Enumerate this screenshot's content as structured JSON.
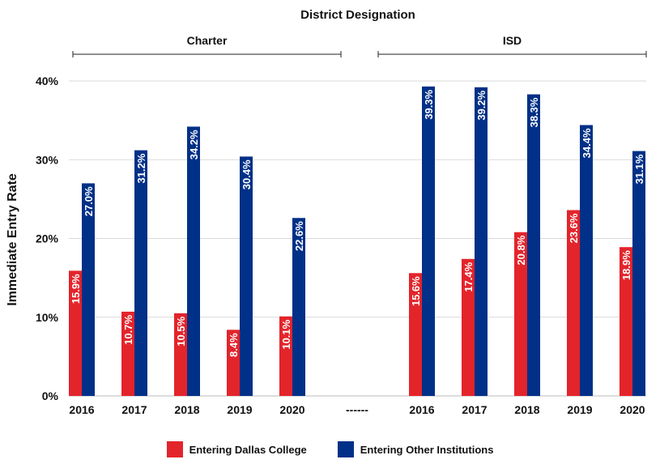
{
  "chart_data": {
    "type": "bar",
    "title": "District Designation",
    "ylabel": "Immediate Entry Rate",
    "ylim": [
      0,
      40
    ],
    "yticks": [
      "0%",
      "10%",
      "20%",
      "30%",
      "40%"
    ],
    "grid": true,
    "separator_label": "------",
    "groups": [
      {
        "name": "Charter",
        "categories": [
          "2016",
          "2017",
          "2018",
          "2019",
          "2020"
        ],
        "series": [
          {
            "name": "Entering Dallas College",
            "values": [
              15.9,
              10.7,
              10.5,
              8.4,
              10.1
            ],
            "labels": [
              "15.9%",
              "10.7%",
              "10.5%",
              "8.4%",
              "10.1%"
            ]
          },
          {
            "name": "Entering Other Institutions",
            "values": [
              27.0,
              31.2,
              34.2,
              30.4,
              22.6
            ],
            "labels": [
              "27.0%",
              "31.2%",
              "34.2%",
              "30.4%",
              "22.6%"
            ]
          }
        ]
      },
      {
        "name": "ISD",
        "categories": [
          "2016",
          "2017",
          "2018",
          "2019",
          "2020"
        ],
        "series": [
          {
            "name": "Entering Dallas College",
            "values": [
              15.6,
              17.4,
              20.8,
              23.6,
              18.9
            ],
            "labels": [
              "15.6%",
              "17.4%",
              "20.8%",
              "23.6%",
              "18.9%"
            ]
          },
          {
            "name": "Entering Other Institutions",
            "values": [
              39.3,
              39.2,
              38.3,
              34.4,
              31.1
            ],
            "labels": [
              "39.3%",
              "39.2%",
              "38.3%",
              "34.4%",
              "31.1%"
            ]
          }
        ]
      }
    ],
    "legend": [
      {
        "label": "Entering Dallas College",
        "color": "#e3242b"
      },
      {
        "label": "Entering Other Institutions",
        "color": "#003087"
      }
    ],
    "legend_position": "bottom"
  }
}
